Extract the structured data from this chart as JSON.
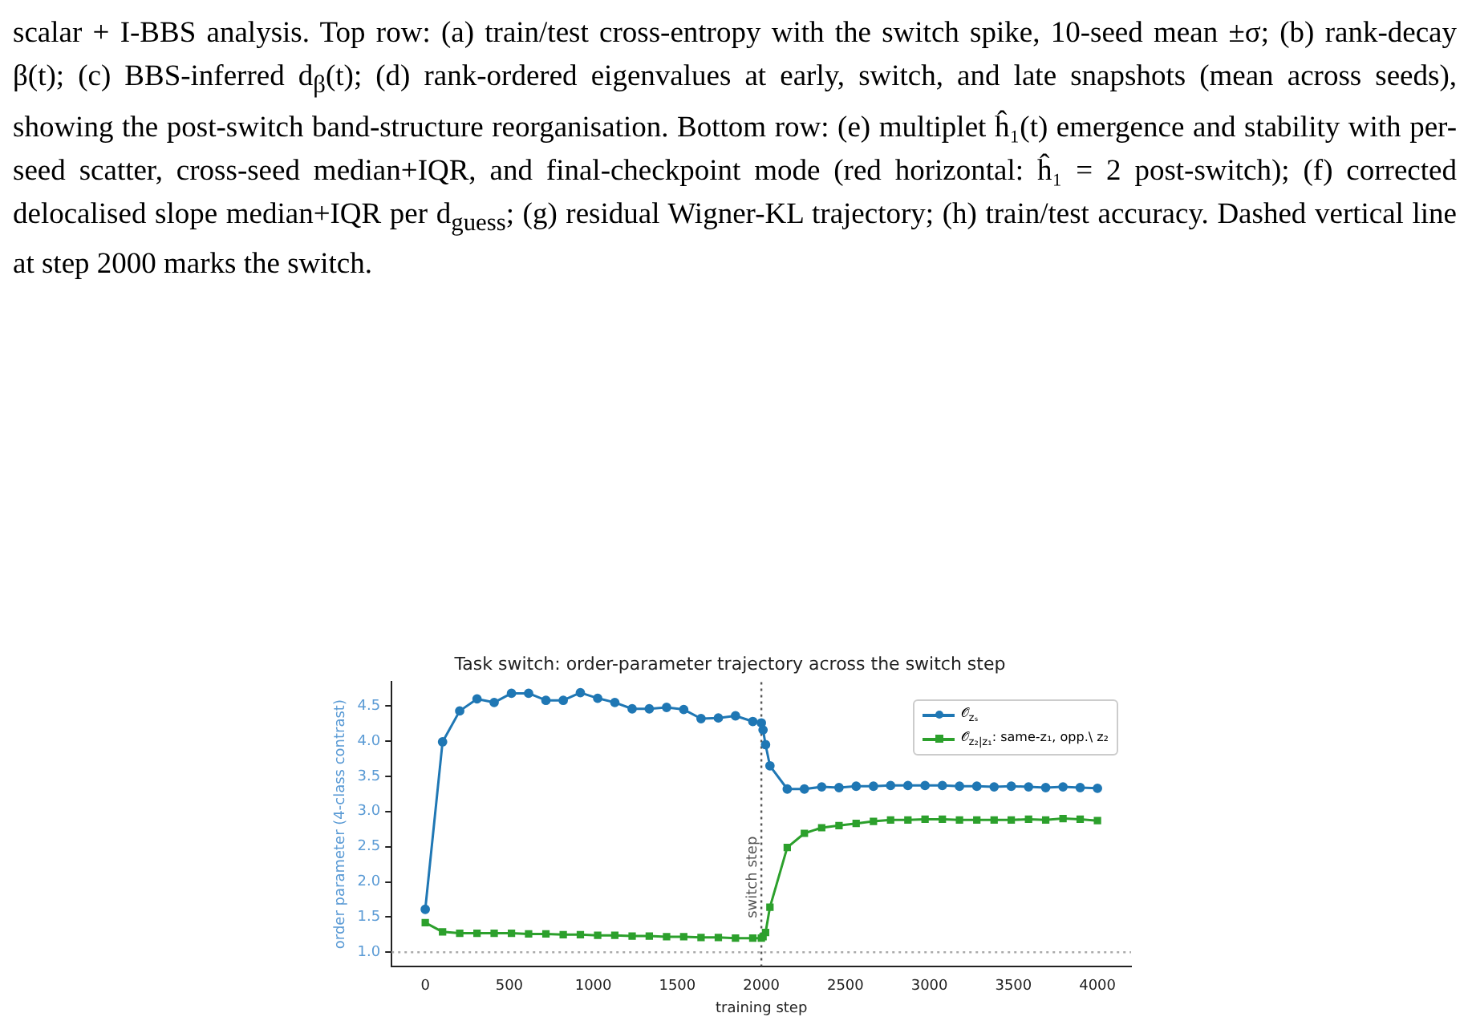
{
  "chart_data": {
    "type": "line",
    "title": "Task switch: order-parameter trajectory across the switch step",
    "xlabel": "training step",
    "ylabel": "order parameter (4-class contrast)",
    "x": [
      0,
      103,
      205,
      308,
      410,
      513,
      615,
      718,
      821,
      923,
      1026,
      1128,
      1231,
      1333,
      1436,
      1538,
      1641,
      1744,
      1846,
      1949,
      2000,
      2010,
      2025,
      2051,
      2154,
      2256,
      2359,
      2462,
      2564,
      2667,
      2769,
      2872,
      2974,
      3077,
      3179,
      3282,
      3385,
      3487,
      3590,
      3692,
      3795,
      3897,
      4000
    ],
    "series": [
      {
        "name": "𝒪$_{zₛ}$",
        "color": "#1f77b4",
        "marker": "circle",
        "values": [
          1.61,
          3.99,
          4.43,
          4.6,
          4.55,
          4.68,
          4.68,
          4.58,
          4.58,
          4.69,
          4.61,
          4.55,
          4.46,
          4.46,
          4.48,
          4.45,
          4.32,
          4.33,
          4.36,
          4.28,
          4.26,
          4.16,
          3.95,
          3.65,
          3.32,
          3.32,
          3.35,
          3.34,
          3.36,
          3.36,
          3.37,
          3.37,
          3.37,
          3.37,
          3.36,
          3.36,
          3.35,
          3.36,
          3.35,
          3.34,
          3.35,
          3.34,
          3.33
        ]
      },
      {
        "name": "𝒪$_{z₂|z₁}$: same-z₁, opp.\\ z₂",
        "color": "#2ca02c",
        "marker": "square",
        "values": [
          1.42,
          1.29,
          1.27,
          1.27,
          1.27,
          1.27,
          1.26,
          1.26,
          1.25,
          1.25,
          1.24,
          1.24,
          1.23,
          1.23,
          1.22,
          1.22,
          1.21,
          1.21,
          1.2,
          1.2,
          1.2,
          1.22,
          1.28,
          1.64,
          2.49,
          2.69,
          2.77,
          2.8,
          2.83,
          2.86,
          2.88,
          2.88,
          2.89,
          2.89,
          2.88,
          2.88,
          2.88,
          2.88,
          2.89,
          2.88,
          2.9,
          2.89,
          2.87
        ]
      }
    ],
    "xlim": [
      -200,
      4200
    ],
    "xticks": [
      0,
      500,
      1000,
      1500,
      2000,
      2500,
      3000,
      3500,
      4000
    ],
    "ylim": [
      0.8,
      4.84
    ],
    "yticks": [
      {
        "value": 1,
        "label": "1.0"
      },
      1.5,
      {
        "value": 2,
        "label": "2.0"
      },
      2.5,
      {
        "value": 3,
        "label": "3.0"
      },
      3.5,
      {
        "value": 4,
        "label": "4.0"
      },
      4.5
    ],
    "ref_lines": [
      {
        "axis": "x",
        "value": 2000,
        "label": "switch step",
        "color": "#555555",
        "line_style": "dotted"
      },
      {
        "axis": "y",
        "value": 1.0,
        "color": "#aaaaaa",
        "line_style": "dotted"
      }
    ],
    "legend": "top right",
    "grid": false,
    "line_style": "solid",
    "annotations": [
      "scalar + I-BBS analysis. Top row: (a) train/test cross-entropy with the switch spike, 10-seed mean ±σ; (b) rank-decay β(t); (c) BBS-inferred d$_{β}$(t); (d) rank-ordered eigenvalues at early, switch, and late snapshots (mean across seeds), showing the post-switch band-structure reorganisation. Bottom row: (e) multiplet ĥ₁(t) emergence and stability with per-seed scatter, cross-seed median+IQR, and final-checkpoint mode (red horizontal: ĥ₁ = 2 post-switch); (f) corrected delocalised slope median+IQR per d$_{guess}$; (g) residual Wigner-KL trajectory; (h) train/test accuracy. Dashed vertical line at step 2000 marks the switch."
    ]
  }
}
